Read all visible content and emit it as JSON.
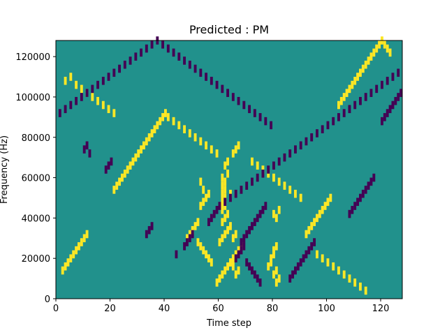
{
  "chart_data": {
    "type": "heatmap",
    "title": "Predicted : PM",
    "xlabel": "Time step",
    "ylabel": "Frequency (Hz)",
    "xlim": [
      0,
      128
    ],
    "ylim": [
      0,
      128000
    ],
    "xticks": [
      0,
      20,
      40,
      60,
      80,
      100,
      120
    ],
    "yticks": [
      0,
      20000,
      40000,
      60000,
      80000,
      100000,
      120000
    ],
    "colormap": "viridis",
    "background_value": 0,
    "colors": {
      "background": "#21918c",
      "high": "#fde725",
      "low": "#440154"
    },
    "cell_width_steps": 1,
    "cell_height_hz": 4000,
    "high_cells": [
      [
        59,
        6000
      ],
      [
        60,
        8000
      ],
      [
        61,
        10000
      ],
      [
        62,
        12000
      ],
      [
        63,
        14000
      ],
      [
        64,
        16000
      ],
      [
        65,
        18000
      ],
      [
        66,
        20000
      ],
      [
        67,
        22000
      ],
      [
        68,
        24000
      ],
      [
        60,
        26000
      ],
      [
        61,
        28000
      ],
      [
        62,
        30000
      ],
      [
        63,
        32000
      ],
      [
        64,
        34000
      ],
      [
        61,
        36000
      ],
      [
        62,
        38000
      ],
      [
        63,
        40000
      ],
      [
        61,
        42000
      ],
      [
        62,
        44000
      ],
      [
        61,
        46000
      ],
      [
        62,
        48000
      ],
      [
        61,
        50000
      ],
      [
        62,
        52000
      ],
      [
        61,
        54000
      ],
      [
        62,
        56000
      ],
      [
        61,
        58000
      ],
      [
        63,
        60000
      ],
      [
        62,
        64000
      ],
      [
        63,
        66000
      ],
      [
        78,
        14000
      ],
      [
        79,
        16000
      ],
      [
        80,
        10000
      ],
      [
        81,
        6000
      ],
      [
        82,
        8000
      ],
      [
        79,
        18000
      ],
      [
        80,
        20000
      ],
      [
        81,
        12000
      ],
      [
        80,
        22000
      ],
      [
        81,
        24000
      ],
      [
        80,
        40000
      ],
      [
        81,
        38000
      ],
      [
        82,
        42000
      ],
      [
        53,
        44000
      ],
      [
        54,
        46000
      ],
      [
        55,
        48000
      ],
      [
        56,
        50000
      ],
      [
        54,
        52000
      ],
      [
        53,
        56000
      ],
      [
        52,
        36000
      ],
      [
        51,
        34000
      ],
      [
        50,
        32000
      ],
      [
        49,
        30000
      ],
      [
        48,
        28000
      ],
      [
        52,
        26000
      ],
      [
        53,
        24000
      ],
      [
        54,
        22000
      ],
      [
        55,
        20000
      ],
      [
        56,
        18000
      ],
      [
        57,
        16000
      ],
      [
        66,
        10000
      ],
      [
        67,
        12000
      ],
      [
        65,
        14000
      ],
      [
        64,
        16000
      ],
      [
        65,
        28000
      ],
      [
        66,
        30000
      ],
      [
        64,
        50000
      ],
      [
        65,
        70000
      ],
      [
        66,
        72000
      ],
      [
        67,
        74000
      ],
      [
        92,
        30000
      ],
      [
        93,
        32000
      ],
      [
        94,
        34000
      ],
      [
        95,
        36000
      ],
      [
        96,
        38000
      ],
      [
        97,
        40000
      ],
      [
        98,
        42000
      ],
      [
        99,
        44000
      ],
      [
        100,
        46000
      ],
      [
        101,
        48000
      ],
      [
        2,
        12000
      ],
      [
        3,
        14000
      ],
      [
        4,
        16000
      ],
      [
        5,
        18000
      ],
      [
        6,
        20000
      ],
      [
        7,
        22000
      ],
      [
        8,
        24000
      ],
      [
        9,
        26000
      ],
      [
        10,
        28000
      ],
      [
        11,
        30000
      ],
      [
        21,
        52000
      ],
      [
        22,
        54000
      ],
      [
        23,
        56000
      ],
      [
        24,
        58000
      ],
      [
        25,
        60000
      ],
      [
        26,
        62000
      ],
      [
        27,
        64000
      ],
      [
        28,
        66000
      ],
      [
        29,
        68000
      ],
      [
        30,
        70000
      ],
      [
        31,
        72000
      ],
      [
        32,
        74000
      ],
      [
        33,
        76000
      ],
      [
        34,
        78000
      ],
      [
        35,
        80000
      ],
      [
        36,
        82000
      ],
      [
        37,
        84000
      ],
      [
        38,
        86000
      ],
      [
        39,
        88000
      ],
      [
        40,
        90000
      ],
      [
        104,
        94000
      ],
      [
        105,
        96000
      ],
      [
        106,
        98000
      ],
      [
        107,
        100000
      ],
      [
        108,
        102000
      ],
      [
        109,
        104000
      ],
      [
        110,
        106000
      ],
      [
        111,
        108000
      ],
      [
        112,
        110000
      ],
      [
        113,
        112000
      ],
      [
        114,
        114000
      ],
      [
        115,
        116000
      ],
      [
        116,
        118000
      ],
      [
        117,
        120000
      ],
      [
        118,
        122000
      ],
      [
        119,
        124000
      ],
      [
        120,
        126000
      ],
      [
        121,
        124000
      ],
      [
        122,
        122000
      ],
      [
        123,
        120000
      ],
      [
        3,
        106000
      ],
      [
        5,
        108000
      ],
      [
        7,
        104000
      ],
      [
        9,
        102000
      ],
      [
        11,
        100000
      ],
      [
        13,
        98000
      ],
      [
        15,
        96000
      ],
      [
        17,
        94000
      ],
      [
        19,
        92000
      ],
      [
        21,
        90000
      ],
      [
        41,
        88000
      ],
      [
        43,
        86000
      ],
      [
        45,
        84000
      ],
      [
        47,
        82000
      ],
      [
        49,
        80000
      ],
      [
        51,
        78000
      ],
      [
        53,
        76000
      ],
      [
        55,
        74000
      ],
      [
        57,
        72000
      ],
      [
        59,
        70000
      ],
      [
        72,
        66000
      ],
      [
        74,
        64000
      ],
      [
        76,
        62000
      ],
      [
        78,
        60000
      ],
      [
        80,
        58000
      ],
      [
        82,
        56000
      ],
      [
        84,
        54000
      ],
      [
        86,
        52000
      ],
      [
        88,
        50000
      ],
      [
        90,
        48000
      ],
      [
        96,
        20000
      ],
      [
        98,
        18000
      ],
      [
        100,
        16000
      ],
      [
        102,
        14000
      ],
      [
        104,
        12000
      ],
      [
        106,
        10000
      ],
      [
        108,
        8000
      ],
      [
        110,
        6000
      ],
      [
        112,
        4000
      ],
      [
        114,
        2000
      ]
    ],
    "low_cells": [
      [
        67,
        20000
      ],
      [
        68,
        22000
      ],
      [
        69,
        24000
      ],
      [
        66,
        18000
      ],
      [
        70,
        16000
      ],
      [
        71,
        14000
      ],
      [
        72,
        12000
      ],
      [
        73,
        10000
      ],
      [
        74,
        8000
      ],
      [
        75,
        6000
      ],
      [
        68,
        26000
      ],
      [
        69,
        28000
      ],
      [
        70,
        30000
      ],
      [
        71,
        32000
      ],
      [
        72,
        34000
      ],
      [
        73,
        36000
      ],
      [
        74,
        38000
      ],
      [
        75,
        40000
      ],
      [
        76,
        42000
      ],
      [
        77,
        44000
      ],
      [
        10,
        72000
      ],
      [
        11,
        74000
      ],
      [
        12,
        70000
      ],
      [
        18,
        62000
      ],
      [
        19,
        64000
      ],
      [
        20,
        66000
      ],
      [
        33,
        30000
      ],
      [
        34,
        32000
      ],
      [
        35,
        34000
      ],
      [
        44,
        20000
      ],
      [
        47,
        24000
      ],
      [
        48,
        26000
      ],
      [
        49,
        28000
      ],
      [
        50,
        30000
      ],
      [
        56,
        36000
      ],
      [
        57,
        38000
      ],
      [
        58,
        40000
      ],
      [
        59,
        42000
      ],
      [
        60,
        44000
      ],
      [
        62,
        46000
      ],
      [
        64,
        48000
      ],
      [
        66,
        50000
      ],
      [
        68,
        52000
      ],
      [
        70,
        54000
      ],
      [
        72,
        56000
      ],
      [
        74,
        58000
      ],
      [
        76,
        60000
      ],
      [
        78,
        62000
      ],
      [
        80,
        64000
      ],
      [
        82,
        66000
      ],
      [
        84,
        68000
      ],
      [
        86,
        70000
      ],
      [
        88,
        72000
      ],
      [
        90,
        74000
      ],
      [
        92,
        76000
      ],
      [
        94,
        78000
      ],
      [
        96,
        80000
      ],
      [
        98,
        82000
      ],
      [
        100,
        84000
      ],
      [
        102,
        86000
      ],
      [
        104,
        88000
      ],
      [
        106,
        90000
      ],
      [
        108,
        92000
      ],
      [
        110,
        94000
      ],
      [
        112,
        96000
      ],
      [
        114,
        98000
      ],
      [
        116,
        100000
      ],
      [
        118,
        102000
      ],
      [
        120,
        104000
      ],
      [
        122,
        106000
      ],
      [
        124,
        108000
      ],
      [
        126,
        110000
      ],
      [
        127,
        100000
      ],
      [
        126,
        98000
      ],
      [
        125,
        96000
      ],
      [
        124,
        94000
      ],
      [
        123,
        92000
      ],
      [
        122,
        90000
      ],
      [
        121,
        88000
      ],
      [
        120,
        86000
      ],
      [
        86,
        8000
      ],
      [
        87,
        10000
      ],
      [
        88,
        12000
      ],
      [
        89,
        14000
      ],
      [
        90,
        16000
      ],
      [
        91,
        18000
      ],
      [
        92,
        20000
      ],
      [
        93,
        22000
      ],
      [
        94,
        24000
      ],
      [
        95,
        26000
      ],
      [
        108,
        40000
      ],
      [
        109,
        42000
      ],
      [
        110,
        44000
      ],
      [
        111,
        46000
      ],
      [
        112,
        48000
      ],
      [
        113,
        50000
      ],
      [
        114,
        52000
      ],
      [
        115,
        54000
      ],
      [
        116,
        56000
      ],
      [
        117,
        58000
      ],
      [
        1,
        90000
      ],
      [
        3,
        92000
      ],
      [
        5,
        94000
      ],
      [
        7,
        96000
      ],
      [
        9,
        98000
      ],
      [
        11,
        100000
      ],
      [
        13,
        102000
      ],
      [
        15,
        104000
      ],
      [
        17,
        106000
      ],
      [
        19,
        108000
      ],
      [
        21,
        110000
      ],
      [
        23,
        112000
      ],
      [
        25,
        114000
      ],
      [
        27,
        116000
      ],
      [
        29,
        118000
      ],
      [
        31,
        120000
      ],
      [
        33,
        122000
      ],
      [
        35,
        124000
      ],
      [
        37,
        126000
      ],
      [
        39,
        124000
      ],
      [
        41,
        122000
      ],
      [
        43,
        120000
      ],
      [
        45,
        118000
      ],
      [
        47,
        116000
      ],
      [
        49,
        114000
      ],
      [
        51,
        112000
      ],
      [
        53,
        110000
      ],
      [
        55,
        108000
      ],
      [
        57,
        106000
      ],
      [
        59,
        104000
      ],
      [
        61,
        102000
      ],
      [
        63,
        100000
      ],
      [
        65,
        98000
      ],
      [
        67,
        96000
      ],
      [
        69,
        94000
      ],
      [
        71,
        92000
      ],
      [
        73,
        90000
      ],
      [
        75,
        88000
      ],
      [
        77,
        86000
      ],
      [
        79,
        84000
      ]
    ]
  }
}
